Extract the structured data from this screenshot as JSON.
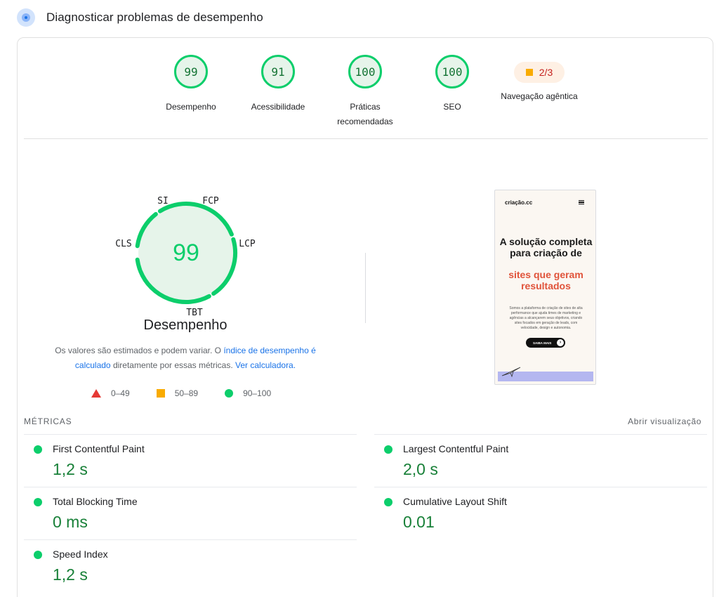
{
  "header": {
    "title": "Diagnosticar problemas de desempenho",
    "icon": "lighthouse-icon"
  },
  "gauges": [
    {
      "score": "99",
      "label": "Desempenho"
    },
    {
      "score": "91",
      "label": "Acessibilidade"
    },
    {
      "score": "100",
      "label": "Práticas recomendadas"
    },
    {
      "score": "100",
      "label": "SEO"
    }
  ],
  "agentic": {
    "value": "2/3",
    "label": "Navegação agêntica"
  },
  "performance": {
    "score": "99",
    "label": "Desempenho",
    "segments": [
      "SI",
      "FCP",
      "LCP",
      "TBT",
      "CLS"
    ]
  },
  "note": {
    "text_before": "Os valores são estimados e podem variar. O ",
    "link1": "índice de desempenho é calculado",
    "text_middle": " diretamente por essas métricas. ",
    "link2": "Ver calculadora."
  },
  "legend": {
    "fail": "0–49",
    "average": "50–89",
    "pass": "90–100"
  },
  "screenshot": {
    "logo": "criação.cc",
    "headline": "A solução completa para criação de",
    "headline_accent": "sites que geram resultados",
    "body": "Somos a plataforma de criação de sites de alta performance que ajuda times de marketing e agências a alcançarem seus objetivos, criando sites focados em geração de leads, com velocidade, design e autonomia.",
    "button": "SAIBA MAIS"
  },
  "metrics": {
    "title": "MÉTRICAS",
    "open_view": "Abrir visualização",
    "items": [
      {
        "name": "First Contentful Paint",
        "value": "1,2 s"
      },
      {
        "name": "Largest Contentful Paint",
        "value": "2,0 s"
      },
      {
        "name": "Total Blocking Time",
        "value": "0 ms"
      },
      {
        "name": "Cumulative Layout Shift",
        "value": "0.01"
      },
      {
        "name": "Speed Index",
        "value": "1,2 s"
      }
    ]
  },
  "colors": {
    "pass": "#0cce6b",
    "pass_text": "#188038",
    "average": "#f9ab00",
    "fail": "#e53935",
    "link": "#1a73e8"
  }
}
